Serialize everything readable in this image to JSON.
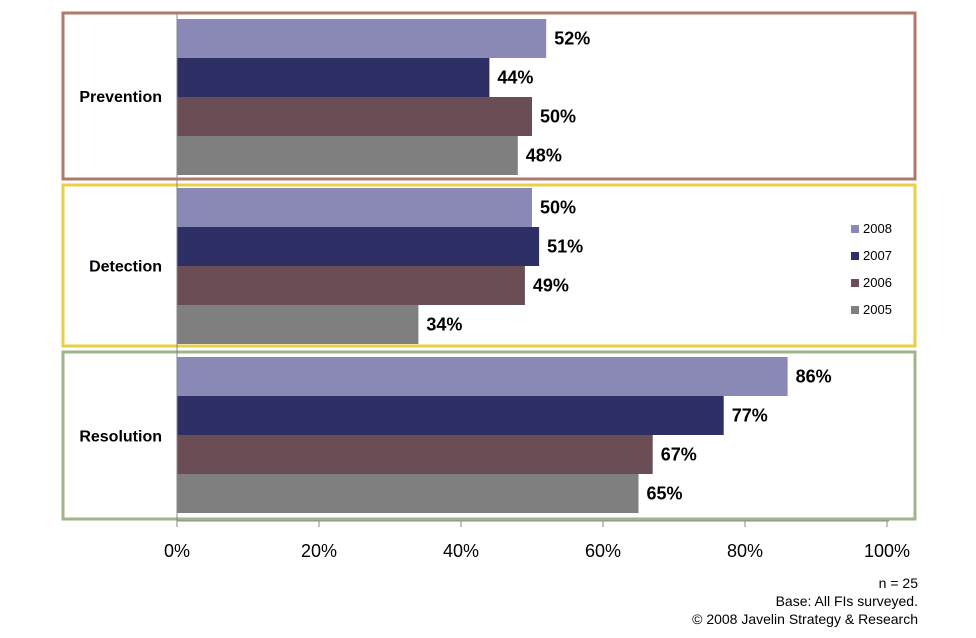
{
  "chart_data": {
    "type": "bar",
    "orientation": "horizontal",
    "categories": [
      "Prevention",
      "Detection",
      "Resolution"
    ],
    "series": [
      {
        "name": "2008",
        "color": "#8a89b5",
        "values": [
          52,
          50,
          86
        ]
      },
      {
        "name": "2007",
        "color": "#2e3065",
        "values": [
          44,
          51,
          77
        ]
      },
      {
        "name": "2006",
        "color": "#6b4d56",
        "values": [
          50,
          49,
          67
        ]
      },
      {
        "name": "2005",
        "color": "#7f7f7f",
        "values": [
          48,
          34,
          65
        ]
      }
    ],
    "value_suffix": "%",
    "xlim": [
      0,
      100
    ],
    "xticks": [
      "0%",
      "20%",
      "40%",
      "60%",
      "80%",
      "100%"
    ],
    "category_frame_colors": [
      "#b07a68",
      "#e8cf45",
      "#9fb58a"
    ],
    "legend_position": "right",
    "grid": false
  },
  "footnotes": {
    "sample": "n = 25",
    "base": "Base: All FIs surveyed.",
    "copyright": "© 2008 Javelin Strategy & Research"
  }
}
